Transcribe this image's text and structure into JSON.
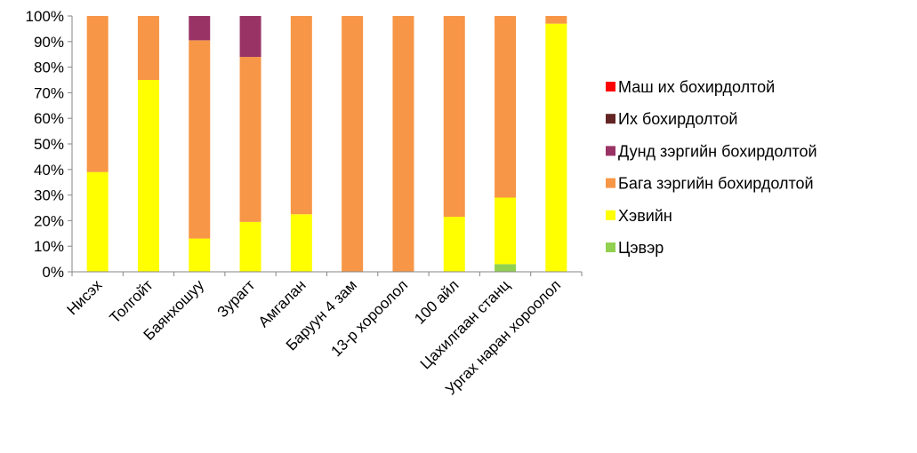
{
  "chart_data": {
    "type": "bar",
    "stacked": true,
    "percent_stacked": true,
    "categories": [
      "Нисэх",
      "Толгойт",
      "Баянхошуу",
      "Зурагт",
      "Амгалан",
      "Баруун 4 зам",
      "13-р хороолол",
      "100 айл",
      "Цахилгаан станц",
      "Ургах наран хороолол"
    ],
    "series": [
      {
        "name": "Цэвэр",
        "color": "#92D050",
        "values": [
          0,
          0,
          0,
          0,
          0,
          0,
          0,
          0,
          3,
          0
        ]
      },
      {
        "name": "Хэвийн",
        "color": "#FFFF00",
        "values": [
          39,
          75,
          13,
          19.5,
          22.5,
          0,
          0,
          21.5,
          26,
          97
        ]
      },
      {
        "name": "Бага зэргийн бохирдолтой",
        "color": "#F79646",
        "values": [
          61,
          25,
          77.5,
          64.5,
          77.5,
          100,
          100,
          78.5,
          71,
          3
        ]
      },
      {
        "name": "Дунд зэргийн бохирдолтой",
        "color": "#993366",
        "values": [
          0,
          0,
          9.5,
          16,
          0,
          0,
          0,
          0,
          0,
          0
        ]
      },
      {
        "name": "Их бохирдолтой",
        "color": "#632523",
        "values": [
          0,
          0,
          0,
          0,
          0,
          0,
          0,
          0,
          0,
          0
        ]
      },
      {
        "name": "Маш их бохирдолтой",
        "color": "#FF0000",
        "values": [
          0,
          0,
          0,
          0,
          0,
          0,
          0,
          0,
          0,
          0
        ]
      }
    ],
    "legend_order": [
      "Маш их бохирдолтой",
      "Их бохирдолтой",
      "Дунд зэргийн бохирдолтой",
      "Бага зэргийн бохирдолтой",
      "Хэвийн",
      "Цэвэр"
    ],
    "ylim": [
      0,
      100
    ],
    "yticks": [
      "0%",
      "10%",
      "20%",
      "30%",
      "40%",
      "50%",
      "60%",
      "70%",
      "80%",
      "90%",
      "100%"
    ],
    "grid": false,
    "legend": "right"
  }
}
